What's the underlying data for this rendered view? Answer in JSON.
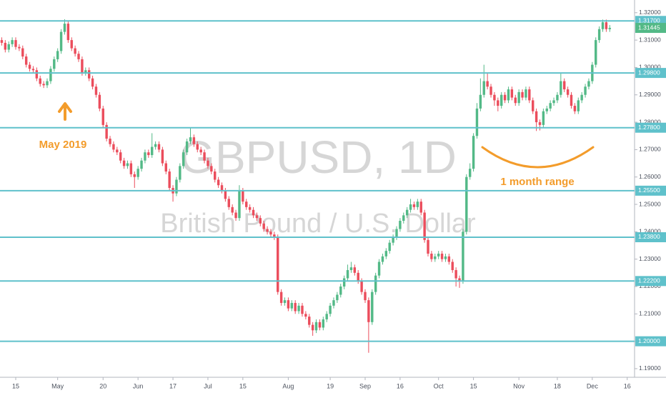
{
  "chart_data": {
    "type": "candlestick",
    "title": "GBPUSD, 1D",
    "subtitle": "British Pound / U.S. Dollar",
    "annotations": [
      "May 2019",
      "1 month range"
    ],
    "up_color": "#53b987",
    "down_color": "#eb4d5c",
    "level_color": "#5fc1cb",
    "annotation_color": "#f39c2b",
    "open": [
      1.31,
      1.309,
      1.3065,
      1.3085,
      1.31,
      1.3075,
      1.307,
      1.304,
      1.301,
      1.2995,
      1.299,
      1.296,
      1.294,
      1.2935,
      1.295,
      1.2995,
      1.303,
      1.306,
      1.313,
      1.316,
      1.31,
      1.307,
      1.305,
      1.303,
      1.298,
      1.299,
      1.296,
      1.293,
      1.29,
      1.285,
      1.279,
      1.274,
      1.272,
      1.27,
      1.269,
      1.266,
      1.264,
      1.265,
      1.261,
      1.26,
      1.263,
      1.266,
      1.269,
      1.268,
      1.271,
      1.272,
      1.27,
      1.265,
      1.262,
      1.256,
      1.254,
      1.259,
      1.264,
      1.269,
      1.273,
      1.2745,
      1.272,
      1.27,
      1.269,
      1.266,
      1.264,
      1.262,
      1.259,
      1.257,
      1.255,
      1.252,
      1.249,
      1.247,
      1.245,
      1.255,
      1.251,
      1.249,
      1.248,
      1.246,
      1.245,
      1.243,
      1.241,
      1.24,
      1.239,
      1.238,
      1.218,
      1.214,
      1.215,
      1.212,
      1.214,
      1.211,
      1.213,
      1.21,
      1.209,
      1.206,
      1.204,
      1.207,
      1.205,
      1.208,
      1.21,
      1.213,
      1.215,
      1.217,
      1.22,
      1.223,
      1.226,
      1.227,
      1.225,
      1.222,
      1.218,
      1.215,
      1.207,
      1.218,
      1.224,
      1.229,
      1.231,
      1.233,
      1.236,
      1.238,
      1.241,
      1.244,
      1.246,
      1.248,
      1.25,
      1.249,
      1.251,
      1.247,
      1.237,
      1.232,
      1.23,
      1.231,
      1.232,
      1.23,
      1.231,
      1.229,
      1.226,
      1.223,
      1.222,
      1.24,
      1.26,
      1.263,
      1.275,
      1.285,
      1.29,
      1.295,
      1.293,
      1.29,
      1.288,
      1.286,
      1.29,
      1.288,
      1.292,
      1.289,
      1.287,
      1.291,
      1.289,
      1.292,
      1.288,
      1.284,
      1.28,
      1.279,
      1.284,
      1.285,
      1.287,
      1.288,
      1.29,
      1.295,
      1.292,
      1.29,
      1.286,
      1.284,
      1.288,
      1.29,
      1.293,
      1.295,
      1.301,
      1.31,
      1.314,
      1.3165,
      1.314
    ],
    "high": [
      1.311,
      1.31,
      1.3095,
      1.311,
      1.311,
      1.3085,
      1.308,
      1.305,
      1.302,
      1.3005,
      1.3,
      1.297,
      1.295,
      1.296,
      1.3005,
      1.304,
      1.307,
      1.314,
      1.3176,
      1.317,
      1.311,
      1.308,
      1.306,
      1.304,
      1.3,
      1.3,
      1.297,
      1.294,
      1.291,
      1.286,
      1.28,
      1.275,
      1.273,
      1.271,
      1.27,
      1.267,
      1.266,
      1.266,
      1.262,
      1.264,
      1.267,
      1.27,
      1.27,
      1.276,
      1.273,
      1.273,
      1.271,
      1.266,
      1.263,
      1.257,
      1.26,
      1.265,
      1.27,
      1.274,
      1.278,
      1.2755,
      1.273,
      1.271,
      1.27,
      1.267,
      1.265,
      1.263,
      1.26,
      1.258,
      1.256,
      1.253,
      1.25,
      1.248,
      1.257,
      1.256,
      1.252,
      1.25,
      1.249,
      1.247,
      1.246,
      1.244,
      1.242,
      1.241,
      1.24,
      1.239,
      1.219,
      1.216,
      1.216,
      1.215,
      1.215,
      1.214,
      1.214,
      1.211,
      1.21,
      1.207,
      1.208,
      1.208,
      1.209,
      1.211,
      1.214,
      1.216,
      1.218,
      1.221,
      1.224,
      1.228,
      1.229,
      1.228,
      1.226,
      1.223,
      1.219,
      1.216,
      1.219,
      1.225,
      1.23,
      1.232,
      1.234,
      1.237,
      1.239,
      1.242,
      1.245,
      1.247,
      1.249,
      1.252,
      1.251,
      1.252,
      1.252,
      1.248,
      1.238,
      1.233,
      1.232,
      1.233,
      1.233,
      1.232,
      1.232,
      1.23,
      1.227,
      1.224,
      1.241,
      1.261,
      1.265,
      1.276,
      1.287,
      1.296,
      1.301,
      1.298,
      1.294,
      1.291,
      1.289,
      1.291,
      1.291,
      1.293,
      1.293,
      1.29,
      1.292,
      1.292,
      1.293,
      1.293,
      1.289,
      1.285,
      1.281,
      1.285,
      1.286,
      1.288,
      1.289,
      1.291,
      1.298,
      1.296,
      1.293,
      1.291,
      1.287,
      1.289,
      1.291,
      1.294,
      1.296,
      1.302,
      1.311,
      1.315,
      1.3175,
      1.3175,
      1.3155
    ],
    "low": [
      1.308,
      1.3055,
      1.3055,
      1.3075,
      1.3065,
      1.306,
      1.303,
      1.3,
      1.2985,
      1.298,
      1.295,
      1.293,
      1.2925,
      1.2925,
      1.294,
      1.2985,
      1.302,
      1.305,
      1.312,
      1.309,
      1.306,
      1.304,
      1.302,
      1.297,
      1.297,
      1.295,
      1.292,
      1.289,
      1.284,
      1.278,
      1.273,
      1.271,
      1.269,
      1.268,
      1.265,
      1.263,
      1.263,
      1.26,
      1.256,
      1.259,
      1.262,
      1.265,
      1.267,
      1.267,
      1.27,
      1.269,
      1.264,
      1.261,
      1.255,
      1.251,
      1.253,
      1.258,
      1.263,
      1.268,
      1.272,
      1.271,
      1.269,
      1.268,
      1.265,
      1.263,
      1.261,
      1.258,
      1.256,
      1.254,
      1.251,
      1.248,
      1.246,
      1.244,
      1.244,
      1.25,
      1.248,
      1.247,
      1.245,
      1.244,
      1.242,
      1.24,
      1.239,
      1.238,
      1.237,
      1.217,
      1.213,
      1.213,
      1.211,
      1.211,
      1.21,
      1.21,
      1.209,
      1.208,
      1.205,
      1.202,
      1.203,
      1.204,
      1.204,
      1.207,
      1.209,
      1.212,
      1.214,
      1.216,
      1.219,
      1.222,
      1.225,
      1.224,
      1.221,
      1.217,
      1.214,
      1.1958,
      1.206,
      1.217,
      1.223,
      1.228,
      1.23,
      1.232,
      1.235,
      1.237,
      1.24,
      1.243,
      1.245,
      1.247,
      1.248,
      1.248,
      1.246,
      1.236,
      1.231,
      1.229,
      1.229,
      1.23,
      1.229,
      1.229,
      1.228,
      1.225,
      1.22,
      1.2195,
      1.221,
      1.239,
      1.259,
      1.262,
      1.274,
      1.284,
      1.289,
      1.292,
      1.289,
      1.286,
      1.284,
      1.285,
      1.287,
      1.287,
      1.288,
      1.286,
      1.286,
      1.288,
      1.288,
      1.287,
      1.283,
      1.2768,
      1.277,
      1.278,
      1.283,
      1.284,
      1.286,
      1.287,
      1.289,
      1.291,
      1.289,
      1.285,
      1.283,
      1.283,
      1.287,
      1.289,
      1.292,
      1.294,
      1.3,
      1.309,
      1.313,
      1.313,
      1.313
    ],
    "close": [
      1.309,
      1.3065,
      1.3085,
      1.31,
      1.3075,
      1.307,
      1.304,
      1.301,
      1.2995,
      1.299,
      1.296,
      1.294,
      1.2935,
      1.295,
      1.2995,
      1.303,
      1.306,
      1.313,
      1.316,
      1.31,
      1.307,
      1.305,
      1.303,
      1.298,
      1.299,
      1.296,
      1.293,
      1.29,
      1.285,
      1.279,
      1.274,
      1.272,
      1.27,
      1.269,
      1.266,
      1.264,
      1.265,
      1.261,
      1.26,
      1.263,
      1.266,
      1.269,
      1.268,
      1.271,
      1.272,
      1.27,
      1.265,
      1.262,
      1.256,
      1.254,
      1.259,
      1.264,
      1.269,
      1.273,
      1.2745,
      1.272,
      1.27,
      1.269,
      1.266,
      1.264,
      1.262,
      1.259,
      1.257,
      1.255,
      1.252,
      1.249,
      1.247,
      1.245,
      1.255,
      1.251,
      1.249,
      1.248,
      1.246,
      1.245,
      1.243,
      1.241,
      1.24,
      1.239,
      1.238,
      1.218,
      1.214,
      1.215,
      1.212,
      1.214,
      1.211,
      1.213,
      1.21,
      1.209,
      1.206,
      1.204,
      1.207,
      1.205,
      1.208,
      1.21,
      1.213,
      1.215,
      1.217,
      1.22,
      1.223,
      1.226,
      1.227,
      1.225,
      1.222,
      1.218,
      1.215,
      1.207,
      1.218,
      1.224,
      1.229,
      1.231,
      1.233,
      1.236,
      1.238,
      1.241,
      1.244,
      1.246,
      1.248,
      1.25,
      1.249,
      1.251,
      1.247,
      1.237,
      1.232,
      1.23,
      1.231,
      1.232,
      1.23,
      1.231,
      1.229,
      1.226,
      1.223,
      1.222,
      1.24,
      1.26,
      1.263,
      1.275,
      1.285,
      1.29,
      1.295,
      1.293,
      1.29,
      1.288,
      1.286,
      1.29,
      1.288,
      1.292,
      1.289,
      1.287,
      1.291,
      1.289,
      1.292,
      1.288,
      1.284,
      1.28,
      1.279,
      1.284,
      1.285,
      1.287,
      1.288,
      1.29,
      1.295,
      1.292,
      1.29,
      1.286,
      1.284,
      1.288,
      1.29,
      1.293,
      1.295,
      1.301,
      1.31,
      1.314,
      1.3165,
      1.314,
      1.31445
    ],
    "xlim": [
      -0.5,
      181.1
    ],
    "xticks": [
      {
        "value": 4,
        "label": "15"
      },
      {
        "value": 16,
        "label": "May"
      },
      {
        "value": 29,
        "label": "20"
      },
      {
        "value": 39,
        "label": "Jun"
      },
      {
        "value": 49,
        "label": "17"
      },
      {
        "value": 59,
        "label": "Jul"
      },
      {
        "value": 69,
        "label": "15"
      },
      {
        "value": 82,
        "label": "Aug"
      },
      {
        "value": 94,
        "label": "19"
      },
      {
        "value": 104,
        "label": "Sep"
      },
      {
        "value": 114,
        "label": "16"
      },
      {
        "value": 125,
        "label": "Oct"
      },
      {
        "value": 135,
        "label": "15"
      },
      {
        "value": 148,
        "label": "Nov"
      },
      {
        "value": 159,
        "label": "18"
      },
      {
        "value": 169,
        "label": "Dec"
      },
      {
        "value": 179,
        "label": "16"
      }
    ],
    "ylim": [
      1.18685,
      1.32464
    ],
    "yticks": [
      {
        "value": 1.19,
        "label": "1.19000"
      },
      {
        "value": 1.2,
        "label": "1.20000"
      },
      {
        "value": 1.21,
        "label": "1.21000"
      },
      {
        "value": 1.22,
        "label": "1.22000"
      },
      {
        "value": 1.23,
        "label": "1.23000"
      },
      {
        "value": 1.24,
        "label": "1.24000"
      },
      {
        "value": 1.25,
        "label": "1.25000"
      },
      {
        "value": 1.26,
        "label": "1.26000"
      },
      {
        "value": 1.27,
        "label": "1.27000"
      },
      {
        "value": 1.28,
        "label": "1.28000"
      },
      {
        "value": 1.29,
        "label": "1.29000"
      },
      {
        "value": 1.3,
        "label": "1.30000"
      },
      {
        "value": 1.31,
        "label": "1.31000"
      },
      {
        "value": 1.32,
        "label": "1.32000"
      }
    ],
    "levels": [
      {
        "value": 1.317,
        "label": "1.31700"
      },
      {
        "value": 1.298,
        "label": "1.29800"
      },
      {
        "value": 1.278,
        "label": "1.27800"
      },
      {
        "value": 1.255,
        "label": "1.25500"
      },
      {
        "value": 1.238,
        "label": "1.23800"
      },
      {
        "value": 1.222,
        "label": "1.22200"
      },
      {
        "value": 1.2,
        "label": "1.20000"
      }
    ],
    "last_price": {
      "value": 1.31445,
      "label": "1.31445"
    }
  }
}
